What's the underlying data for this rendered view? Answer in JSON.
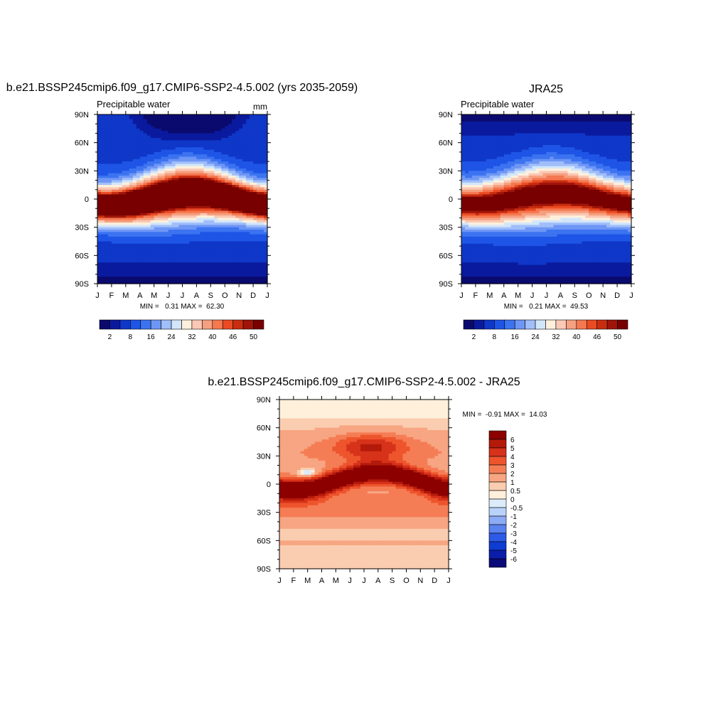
{
  "chart_data": [
    {
      "type": "heatmap",
      "title": "b.e21.BSSP245cmip6.f09_g17.CMIP6-SSP2-4.5.002 (yrs 2035-2059)",
      "subtitle": "Precipitable water",
      "units": "mm",
      "x_tick_labels": [
        "J",
        "F",
        "M",
        "A",
        "M",
        "J",
        "J",
        "A",
        "S",
        "O",
        "N",
        "D",
        "J"
      ],
      "y_tick_labels": [
        "90N",
        "60N",
        "30N",
        "0",
        "30S",
        "60S",
        "90S"
      ],
      "ylim": [
        -90,
        90
      ],
      "xlim": [
        0,
        12
      ],
      "stats": "MIN =   0.31 MAX =  62.30",
      "colorbar": {
        "orientation": "horizontal",
        "levels": [
          2,
          4,
          8,
          12,
          16,
          20,
          24,
          28,
          32,
          36,
          40,
          44,
          46,
          48,
          50
        ],
        "labels": [
          "2",
          "8",
          "16",
          "24",
          "32",
          "40",
          "46",
          "50"
        ],
        "label_levels": [
          2,
          8,
          16,
          24,
          32,
          40,
          46,
          50
        ],
        "colors": [
          "#0a0a6e",
          "#0a1a9e",
          "#0f37c8",
          "#1e55e6",
          "#3c73f0",
          "#6e96f5",
          "#a0befa",
          "#d2e6fa",
          "#fff0dc",
          "#fac8b4",
          "#f5a080",
          "#f57850",
          "#eb4b23",
          "#c82d0f",
          "#a0140a",
          "#780000"
        ]
      },
      "field": "model"
    },
    {
      "type": "heatmap",
      "title": "JRA25",
      "subtitle": "Precipitable water",
      "units": "",
      "x_tick_labels": [
        "J",
        "F",
        "M",
        "A",
        "M",
        "J",
        "J",
        "A",
        "S",
        "O",
        "N",
        "D",
        "J"
      ],
      "y_tick_labels": [
        "90N",
        "60N",
        "30N",
        "0",
        "30S",
        "60S",
        "90S"
      ],
      "ylim": [
        -90,
        90
      ],
      "xlim": [
        0,
        12
      ],
      "stats": "MIN =   0.21 MAX =  49.53",
      "colorbar": {
        "orientation": "horizontal",
        "levels": [
          2,
          4,
          8,
          12,
          16,
          20,
          24,
          28,
          32,
          36,
          40,
          44,
          46,
          48,
          50
        ],
        "labels": [
          "2",
          "8",
          "16",
          "24",
          "32",
          "40",
          "46",
          "50"
        ],
        "label_levels": [
          2,
          8,
          16,
          24,
          32,
          40,
          46,
          50
        ],
        "colors": [
          "#0a0a6e",
          "#0a1a9e",
          "#0f37c8",
          "#1e55e6",
          "#3c73f0",
          "#6e96f5",
          "#a0befa",
          "#d2e6fa",
          "#fff0dc",
          "#fac8b4",
          "#f5a080",
          "#f57850",
          "#eb4b23",
          "#c82d0f",
          "#a0140a",
          "#780000"
        ]
      },
      "field": "obs"
    },
    {
      "type": "heatmap",
      "title": "b.e21.BSSP245cmip6.f09_g17.CMIP6-SSP2-4.5.002 - JRA25",
      "subtitle": "",
      "units": "",
      "x_tick_labels": [
        "J",
        "F",
        "M",
        "A",
        "M",
        "J",
        "J",
        "A",
        "S",
        "O",
        "N",
        "D",
        "J"
      ],
      "y_tick_labels": [
        "90N",
        "60N",
        "30N",
        "0",
        "30S",
        "60S",
        "90S"
      ],
      "ylim": [
        -90,
        90
      ],
      "xlim": [
        0,
        12
      ],
      "stats": "MIN =  -0.91 MAX =  14.03",
      "colorbar": {
        "orientation": "vertical",
        "levels": [
          -6,
          -5,
          -4,
          -3,
          -2,
          -1,
          -0.5,
          0,
          0.5,
          1,
          2,
          3,
          4,
          5,
          6
        ],
        "labels": [
          "6",
          "5",
          "4",
          "3",
          "2",
          "1",
          "0.5",
          "0",
          "-0.5",
          "-1",
          "-2",
          "-3",
          "-4",
          "-5",
          "-6"
        ],
        "colors": [
          "#0a0a78",
          "#0a1eaa",
          "#0f3cd2",
          "#2d5ae6",
          "#5a82f0",
          "#8caaf5",
          "#b9d2fa",
          "#dcebfa",
          "#fff0dc",
          "#fbcdb0",
          "#f7a582",
          "#f57d55",
          "#ee552d",
          "#d7321a",
          "#b41a0a",
          "#8c0000"
        ]
      },
      "field": "diff"
    }
  ]
}
